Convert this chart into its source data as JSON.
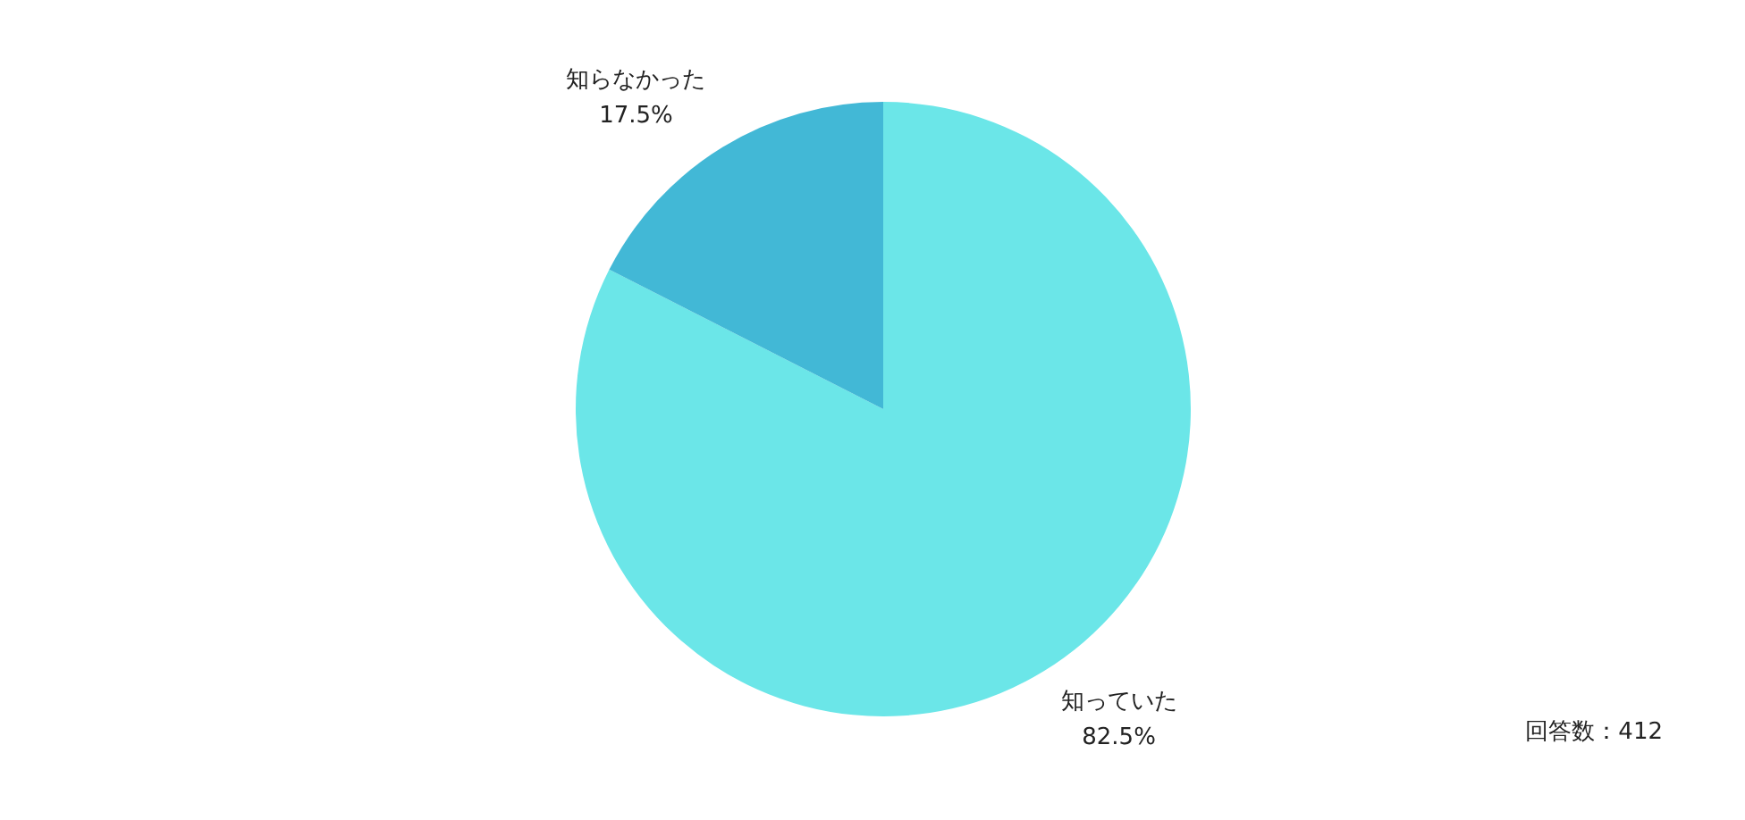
{
  "chart_data": {
    "type": "pie",
    "categories": [
      "知っていた",
      "知らなかった"
    ],
    "values": [
      82.5,
      17.5
    ],
    "colors": [
      "#6be6e8",
      "#42b8d6"
    ],
    "value_labels": [
      "82.5%",
      "17.5%"
    ],
    "annotations": [
      "回答数：412"
    ]
  }
}
